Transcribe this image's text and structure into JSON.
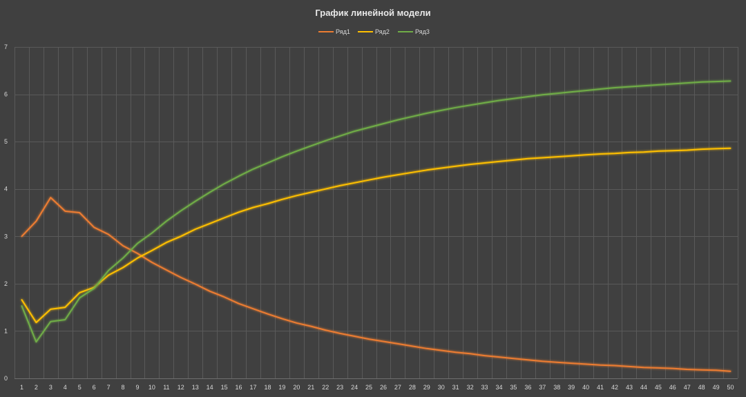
{
  "chart_data": {
    "type": "line",
    "title": "График линейной модели",
    "xlabel": "",
    "ylabel": "",
    "x": [
      1,
      2,
      3,
      4,
      5,
      6,
      7,
      8,
      9,
      10,
      11,
      12,
      13,
      14,
      15,
      16,
      17,
      18,
      19,
      20,
      21,
      22,
      23,
      24,
      25,
      26,
      27,
      28,
      29,
      30,
      31,
      32,
      33,
      34,
      35,
      36,
      37,
      38,
      39,
      40,
      41,
      42,
      43,
      44,
      45,
      46,
      47,
      48,
      49,
      50
    ],
    "ylim": [
      0,
      7
    ],
    "yticks": [
      0,
      1,
      2,
      3,
      4,
      5,
      6,
      7
    ],
    "grid": true,
    "legend_position": "top",
    "series": [
      {
        "name": "Ряд1",
        "color": "#ed7d31",
        "values": [
          3.0,
          3.32,
          3.82,
          3.53,
          3.5,
          3.19,
          3.04,
          2.8,
          2.64,
          2.45,
          2.29,
          2.13,
          1.99,
          1.84,
          1.72,
          1.58,
          1.47,
          1.36,
          1.26,
          1.17,
          1.1,
          1.02,
          0.95,
          0.89,
          0.83,
          0.78,
          0.73,
          0.68,
          0.63,
          0.59,
          0.55,
          0.52,
          0.48,
          0.45,
          0.42,
          0.39,
          0.36,
          0.34,
          0.32,
          0.3,
          0.28,
          0.27,
          0.25,
          0.23,
          0.22,
          0.21,
          0.19,
          0.18,
          0.17,
          0.15
        ]
      },
      {
        "name": "Ряд2",
        "color": "#ffc000",
        "values": [
          1.66,
          1.18,
          1.46,
          1.5,
          1.81,
          1.92,
          2.18,
          2.34,
          2.54,
          2.7,
          2.87,
          3.0,
          3.15,
          3.27,
          3.39,
          3.51,
          3.61,
          3.69,
          3.78,
          3.86,
          3.93,
          4.0,
          4.07,
          4.13,
          4.19,
          4.25,
          4.3,
          4.35,
          4.4,
          4.44,
          4.48,
          4.52,
          4.55,
          4.58,
          4.61,
          4.64,
          4.66,
          4.68,
          4.7,
          4.72,
          4.74,
          4.75,
          4.77,
          4.78,
          4.8,
          4.81,
          4.82,
          4.84,
          4.85,
          4.86
        ]
      },
      {
        "name": "Ряд3",
        "color": "#70ad47",
        "values": [
          1.53,
          0.77,
          1.2,
          1.24,
          1.7,
          1.9,
          2.28,
          2.54,
          2.85,
          3.07,
          3.32,
          3.54,
          3.74,
          3.93,
          4.11,
          4.27,
          4.42,
          4.55,
          4.68,
          4.8,
          4.91,
          5.02,
          5.12,
          5.22,
          5.3,
          5.38,
          5.46,
          5.53,
          5.6,
          5.66,
          5.72,
          5.77,
          5.82,
          5.87,
          5.91,
          5.95,
          5.99,
          6.02,
          6.05,
          6.08,
          6.11,
          6.14,
          6.16,
          6.18,
          6.2,
          6.22,
          6.24,
          6.26,
          6.27,
          6.28
        ]
      }
    ]
  }
}
